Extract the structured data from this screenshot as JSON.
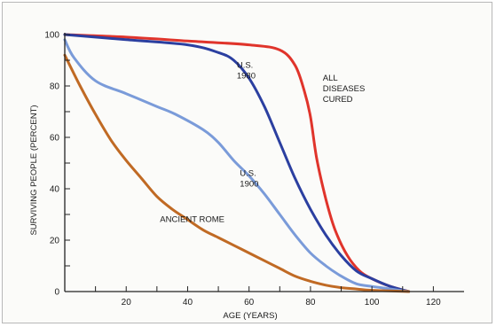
{
  "chart_data": {
    "type": "line",
    "title": "",
    "xlabel": "AGE (YEARS)",
    "ylabel": "SURVIVING PEOPLE (PERCENT)",
    "xlim": [
      0,
      130
    ],
    "ylim": [
      0,
      100
    ],
    "xticks": [
      20,
      40,
      60,
      80,
      100,
      120
    ],
    "yticks": [
      0,
      20,
      40,
      60,
      80,
      100
    ],
    "grid": false,
    "series": [
      {
        "name": "ALL DISEASES CURED",
        "label_lines": [
          "ALL",
          "DISEASES",
          "CURED"
        ],
        "color": "#e0342b",
        "points": [
          [
            0,
            100
          ],
          [
            20,
            99
          ],
          [
            40,
            97.5
          ],
          [
            60,
            96
          ],
          [
            70,
            94
          ],
          [
            75,
            88
          ],
          [
            78,
            78
          ],
          [
            80,
            68
          ],
          [
            82,
            52
          ],
          [
            85,
            36
          ],
          [
            88,
            24
          ],
          [
            92,
            14
          ],
          [
            96,
            8
          ],
          [
            100,
            5
          ],
          [
            106,
            2
          ],
          [
            112,
            0
          ]
        ]
      },
      {
        "name": "U.S. 1980",
        "label_lines": [
          "U.S.",
          "1980"
        ],
        "color": "#2b3fa0",
        "points": [
          [
            0,
            100
          ],
          [
            20,
            98
          ],
          [
            40,
            96
          ],
          [
            50,
            93
          ],
          [
            55,
            90
          ],
          [
            60,
            83
          ],
          [
            65,
            72
          ],
          [
            70,
            58
          ],
          [
            75,
            44
          ],
          [
            80,
            32
          ],
          [
            85,
            22
          ],
          [
            90,
            14
          ],
          [
            95,
            8
          ],
          [
            100,
            5
          ],
          [
            106,
            2
          ],
          [
            112,
            0
          ]
        ]
      },
      {
        "name": "U.S. 1900",
        "label_lines": [
          "U.S.",
          "1900"
        ],
        "color": "#7a9bd9",
        "points": [
          [
            0,
            98
          ],
          [
            3,
            91
          ],
          [
            10,
            82
          ],
          [
            20,
            77
          ],
          [
            30,
            72
          ],
          [
            36,
            69
          ],
          [
            45,
            63
          ],
          [
            50,
            58
          ],
          [
            55,
            51
          ],
          [
            60,
            45
          ],
          [
            65,
            38
          ],
          [
            70,
            30
          ],
          [
            75,
            22
          ],
          [
            80,
            15
          ],
          [
            85,
            10
          ],
          [
            90,
            6
          ],
          [
            95,
            3
          ],
          [
            100,
            2
          ],
          [
            106,
            1
          ],
          [
            112,
            0
          ]
        ]
      },
      {
        "name": "ANCIENT ROME",
        "label_lines": [
          "ANCIENT ROME"
        ],
        "color": "#c06a24",
        "points": [
          [
            0,
            92
          ],
          [
            5,
            80
          ],
          [
            10,
            69
          ],
          [
            15,
            59
          ],
          [
            20,
            51
          ],
          [
            25,
            44
          ],
          [
            30,
            37
          ],
          [
            35,
            32
          ],
          [
            40,
            28
          ],
          [
            45,
            24
          ],
          [
            50,
            21
          ],
          [
            55,
            18
          ],
          [
            60,
            15
          ],
          [
            65,
            12
          ],
          [
            70,
            9
          ],
          [
            75,
            6
          ],
          [
            80,
            4
          ],
          [
            85,
            2.5
          ],
          [
            90,
            1.5
          ],
          [
            95,
            1
          ],
          [
            100,
            0.5
          ],
          [
            112,
            0
          ]
        ]
      }
    ]
  }
}
